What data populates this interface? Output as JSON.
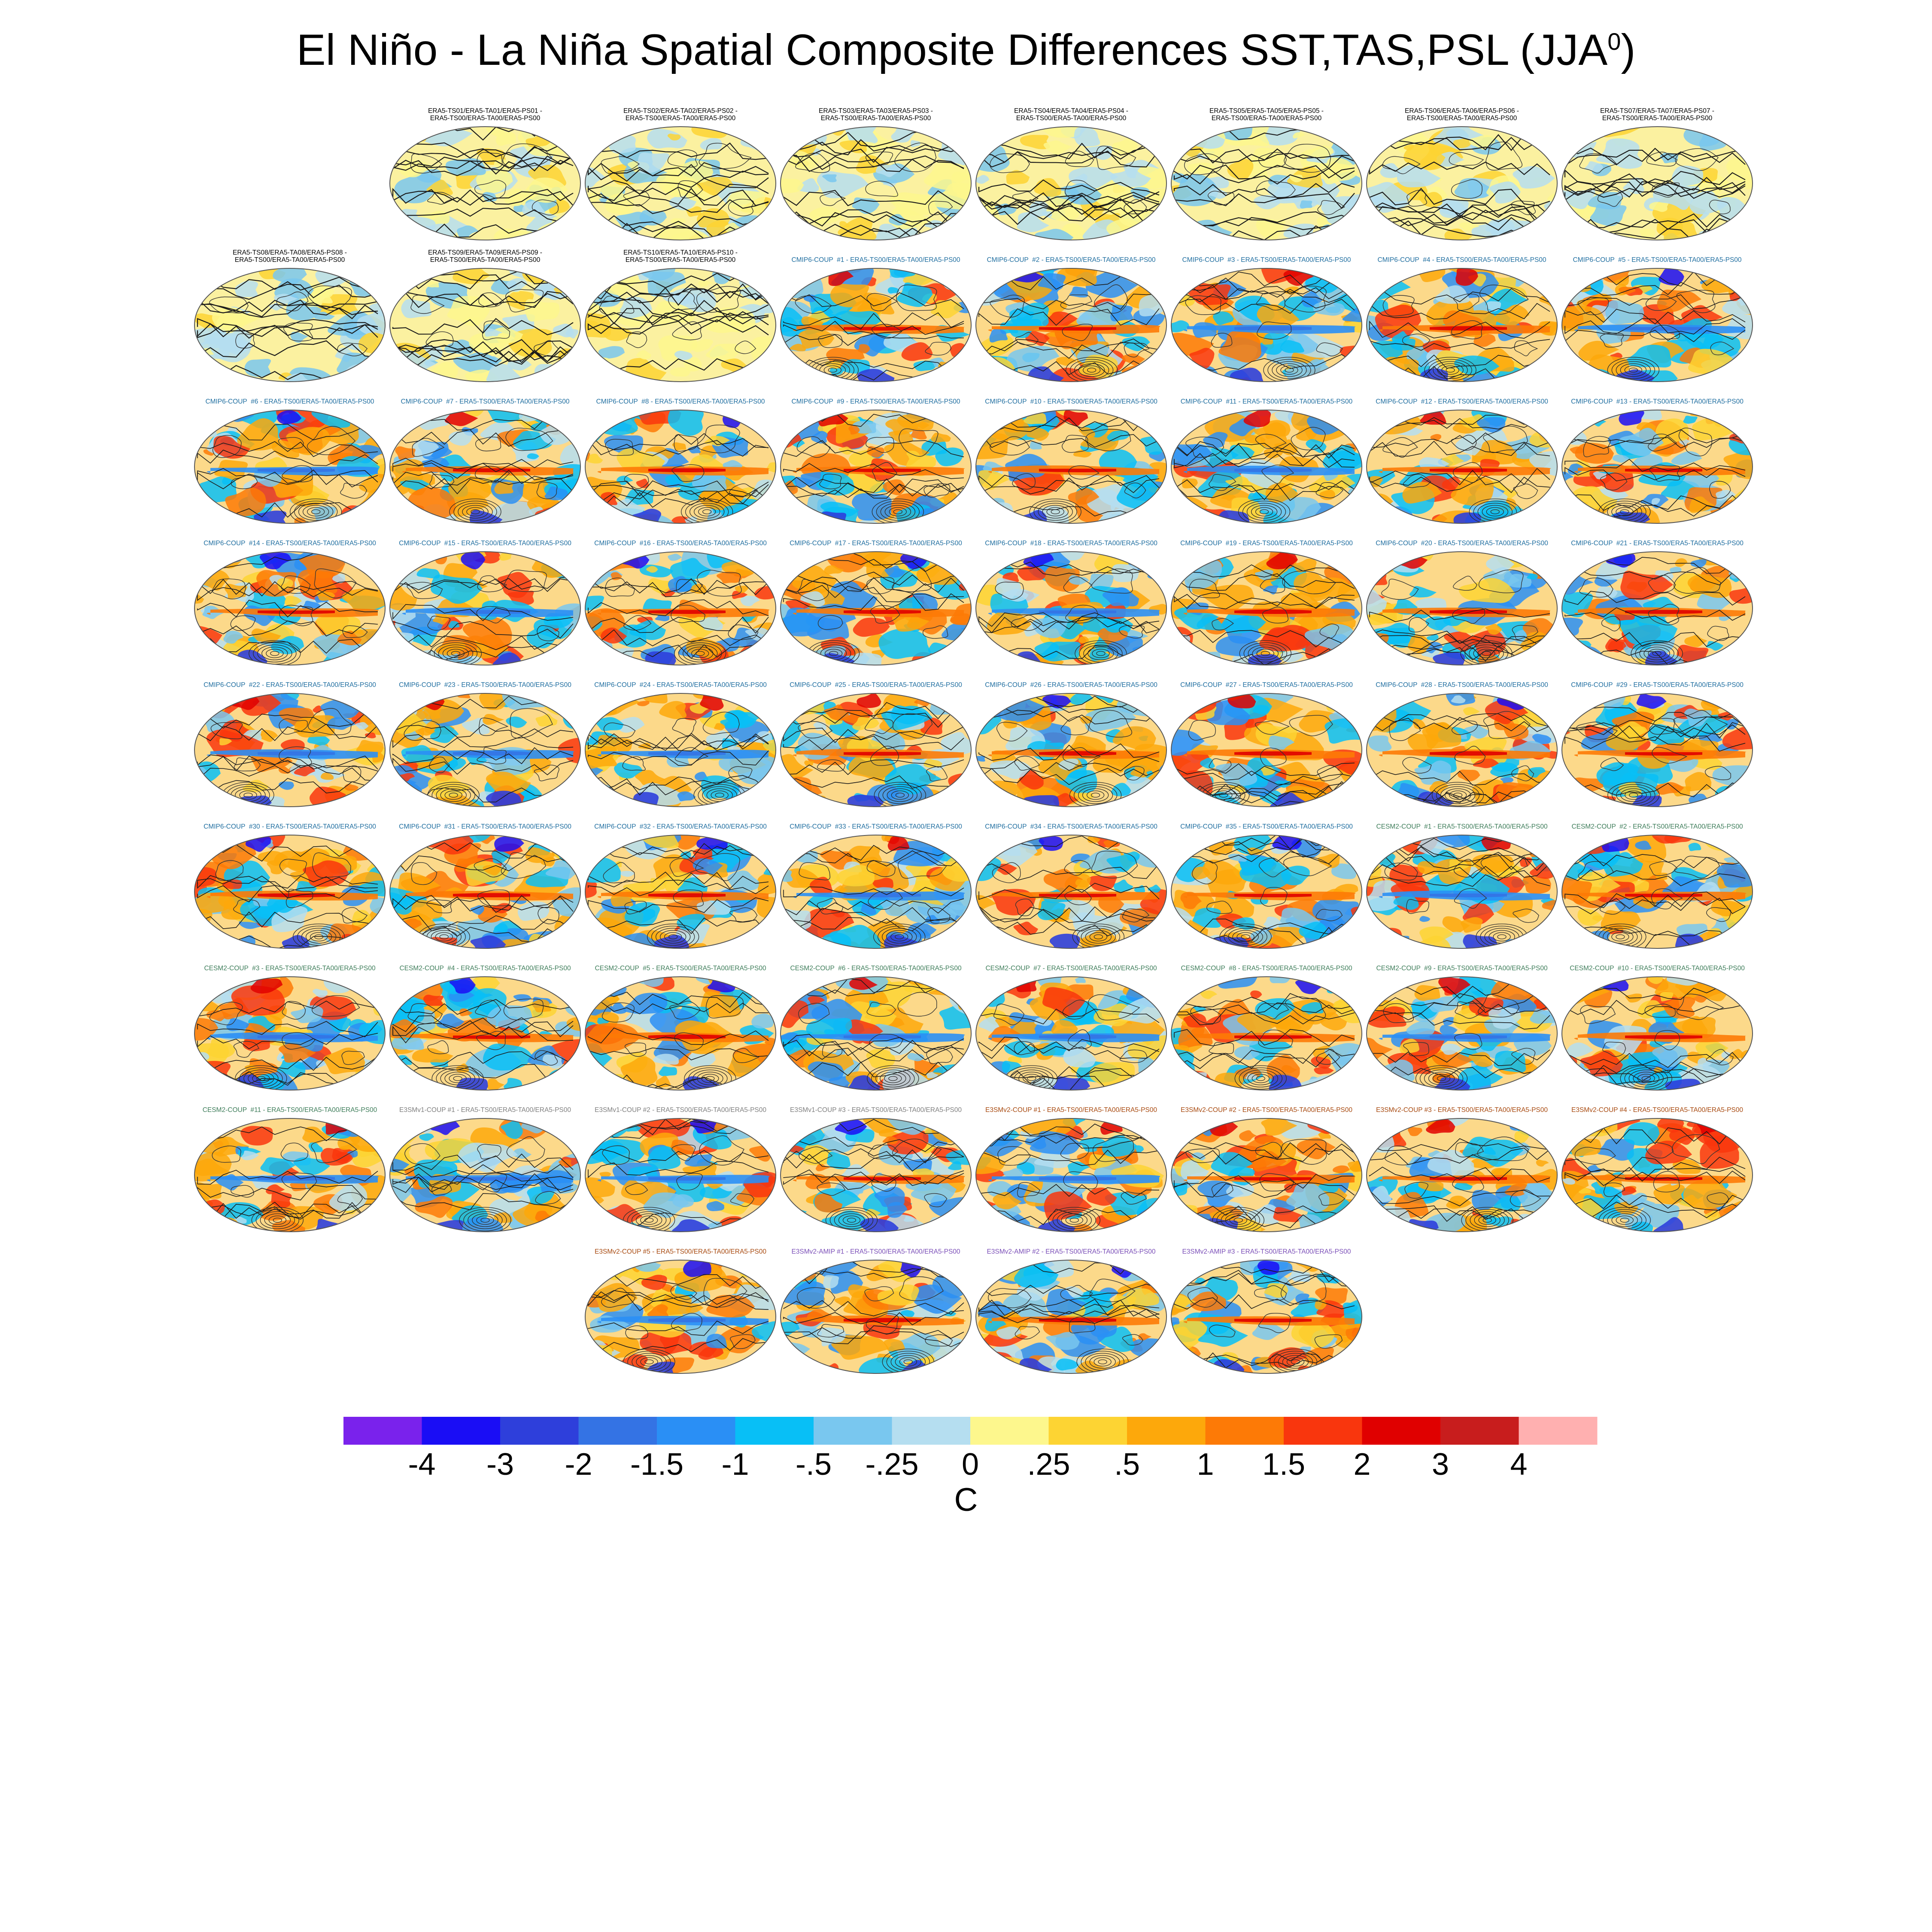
{
  "title": {
    "main": "El Niño - La Niña Spatial Composite Differences SST,TAS,PSL (JJA",
    "superscript": "0",
    "close": ")"
  },
  "label_colors": {
    "ERA5": "#000000",
    "CMIP6-COUP": "#1f6ea0",
    "CESM2-COUP": "#3e7d5a",
    "E3SMv1-COUP": "#808080",
    "E3SMv2-COUP": "#a84a10",
    "E3SMv2-AMIP": "#7b4fb8"
  },
  "rows": [
    [
      {
        "label": "ERA5-TS01/ERA5-TA01/ERA5-PS01 -\nERA5-TS00/ERA5-TA00/ERA5-PS00",
        "group": "ERA5"
      },
      {
        "label": "ERA5-TS02/ERA5-TA02/ERA5-PS02 -\nERA5-TS00/ERA5-TA00/ERA5-PS00",
        "group": "ERA5"
      },
      {
        "label": "ERA5-TS03/ERA5-TA03/ERA5-PS03 -\nERA5-TS00/ERA5-TA00/ERA5-PS00",
        "group": "ERA5"
      },
      {
        "label": "ERA5-TS04/ERA5-TA04/ERA5-PS04 -\nERA5-TS00/ERA5-TA00/ERA5-PS00",
        "group": "ERA5"
      },
      {
        "label": "ERA5-TS05/ERA5-TA05/ERA5-PS05 -\nERA5-TS00/ERA5-TA00/ERA5-PS00",
        "group": "ERA5"
      },
      {
        "label": "ERA5-TS06/ERA5-TA06/ERA5-PS06 -\nERA5-TS00/ERA5-TA00/ERA5-PS00",
        "group": "ERA5"
      },
      {
        "label": "ERA5-TS07/ERA5-TA07/ERA5-PS07 -\nERA5-TS00/ERA5-TA00/ERA5-PS00",
        "group": "ERA5"
      }
    ],
    [
      {
        "label": "ERA5-TS08/ERA5-TA08/ERA5-PS08 -\nERA5-TS00/ERA5-TA00/ERA5-PS00",
        "group": "ERA5"
      },
      {
        "label": "ERA5-TS09/ERA5-TA09/ERA5-PS09 -\nERA5-TS00/ERA5-TA00/ERA5-PS00",
        "group": "ERA5"
      },
      {
        "label": "ERA5-TS10/ERA5-TA10/ERA5-PS10 -\nERA5-TS00/ERA5-TA00/ERA5-PS00",
        "group": "ERA5"
      },
      {
        "label": "CMIP6-COUP  #1 - ERA5-TS00/ERA5-TA00/ERA5-PS00",
        "group": "CMIP6-COUP"
      },
      {
        "label": "CMIP6-COUP  #2 - ERA5-TS00/ERA5-TA00/ERA5-PS00",
        "group": "CMIP6-COUP"
      },
      {
        "label": "CMIP6-COUP  #3 - ERA5-TS00/ERA5-TA00/ERA5-PS00",
        "group": "CMIP6-COUP"
      },
      {
        "label": "CMIP6-COUP  #4 - ERA5-TS00/ERA5-TA00/ERA5-PS00",
        "group": "CMIP6-COUP"
      },
      {
        "label": "CMIP6-COUP  #5 - ERA5-TS00/ERA5-TA00/ERA5-PS00",
        "group": "CMIP6-COUP"
      }
    ],
    [
      {
        "label": "CMIP6-COUP  #6 - ERA5-TS00/ERA5-TA00/ERA5-PS00",
        "group": "CMIP6-COUP"
      },
      {
        "label": "CMIP6-COUP  #7 - ERA5-TS00/ERA5-TA00/ERA5-PS00",
        "group": "CMIP6-COUP"
      },
      {
        "label": "CMIP6-COUP  #8 - ERA5-TS00/ERA5-TA00/ERA5-PS00",
        "group": "CMIP6-COUP"
      },
      {
        "label": "CMIP6-COUP  #9 - ERA5-TS00/ERA5-TA00/ERA5-PS00",
        "group": "CMIP6-COUP"
      },
      {
        "label": "CMIP6-COUP  #10 - ERA5-TS00/ERA5-TA00/ERA5-PS00",
        "group": "CMIP6-COUP"
      },
      {
        "label": "CMIP6-COUP  #11 - ERA5-TS00/ERA5-TA00/ERA5-PS00",
        "group": "CMIP6-COUP"
      },
      {
        "label": "CMIP6-COUP  #12 - ERA5-TS00/ERA5-TA00/ERA5-PS00",
        "group": "CMIP6-COUP"
      },
      {
        "label": "CMIP6-COUP  #13 - ERA5-TS00/ERA5-TA00/ERA5-PS00",
        "group": "CMIP6-COUP"
      }
    ],
    [
      {
        "label": "CMIP6-COUP  #14 - ERA5-TS00/ERA5-TA00/ERA5-PS00",
        "group": "CMIP6-COUP"
      },
      {
        "label": "CMIP6-COUP  #15 - ERA5-TS00/ERA5-TA00/ERA5-PS00",
        "group": "CMIP6-COUP"
      },
      {
        "label": "CMIP6-COUP  #16 - ERA5-TS00/ERA5-TA00/ERA5-PS00",
        "group": "CMIP6-COUP"
      },
      {
        "label": "CMIP6-COUP  #17 - ERA5-TS00/ERA5-TA00/ERA5-PS00",
        "group": "CMIP6-COUP"
      },
      {
        "label": "CMIP6-COUP  #18 - ERA5-TS00/ERA5-TA00/ERA5-PS00",
        "group": "CMIP6-COUP"
      },
      {
        "label": "CMIP6-COUP  #19 - ERA5-TS00/ERA5-TA00/ERA5-PS00",
        "group": "CMIP6-COUP"
      },
      {
        "label": "CMIP6-COUP  #20 - ERA5-TS00/ERA5-TA00/ERA5-PS00",
        "group": "CMIP6-COUP"
      },
      {
        "label": "CMIP6-COUP  #21 - ERA5-TS00/ERA5-TA00/ERA5-PS00",
        "group": "CMIP6-COUP"
      }
    ],
    [
      {
        "label": "CMIP6-COUP  #22 - ERA5-TS00/ERA5-TA00/ERA5-PS00",
        "group": "CMIP6-COUP"
      },
      {
        "label": "CMIP6-COUP  #23 - ERA5-TS00/ERA5-TA00/ERA5-PS00",
        "group": "CMIP6-COUP"
      },
      {
        "label": "CMIP6-COUP  #24 - ERA5-TS00/ERA5-TA00/ERA5-PS00",
        "group": "CMIP6-COUP"
      },
      {
        "label": "CMIP6-COUP  #25 - ERA5-TS00/ERA5-TA00/ERA5-PS00",
        "group": "CMIP6-COUP"
      },
      {
        "label": "CMIP6-COUP  #26 - ERA5-TS00/ERA5-TA00/ERA5-PS00",
        "group": "CMIP6-COUP"
      },
      {
        "label": "CMIP6-COUP  #27 - ERA5-TS00/ERA5-TA00/ERA5-PS00",
        "group": "CMIP6-COUP"
      },
      {
        "label": "CMIP6-COUP  #28 - ERA5-TS00/ERA5-TA00/ERA5-PS00",
        "group": "CMIP6-COUP"
      },
      {
        "label": "CMIP6-COUP  #29 - ERA5-TS00/ERA5-TA00/ERA5-PS00",
        "group": "CMIP6-COUP"
      }
    ],
    [
      {
        "label": "CMIP6-COUP  #30 - ERA5-TS00/ERA5-TA00/ERA5-PS00",
        "group": "CMIP6-COUP"
      },
      {
        "label": "CMIP6-COUP  #31 - ERA5-TS00/ERA5-TA00/ERA5-PS00",
        "group": "CMIP6-COUP"
      },
      {
        "label": "CMIP6-COUP  #32 - ERA5-TS00/ERA5-TA00/ERA5-PS00",
        "group": "CMIP6-COUP"
      },
      {
        "label": "CMIP6-COUP  #33 - ERA5-TS00/ERA5-TA00/ERA5-PS00",
        "group": "CMIP6-COUP"
      },
      {
        "label": "CMIP6-COUP  #34 - ERA5-TS00/ERA5-TA00/ERA5-PS00",
        "group": "CMIP6-COUP"
      },
      {
        "label": "CMIP6-COUP  #35 - ERA5-TS00/ERA5-TA00/ERA5-PS00",
        "group": "CMIP6-COUP"
      },
      {
        "label": "CESM2-COUP  #1 - ERA5-TS00/ERA5-TA00/ERA5-PS00",
        "group": "CESM2-COUP"
      },
      {
        "label": "CESM2-COUP  #2 - ERA5-TS00/ERA5-TA00/ERA5-PS00",
        "group": "CESM2-COUP"
      }
    ],
    [
      {
        "label": "CESM2-COUP  #3 - ERA5-TS00/ERA5-TA00/ERA5-PS00",
        "group": "CESM2-COUP"
      },
      {
        "label": "CESM2-COUP  #4 - ERA5-TS00/ERA5-TA00/ERA5-PS00",
        "group": "CESM2-COUP"
      },
      {
        "label": "CESM2-COUP  #5 - ERA5-TS00/ERA5-TA00/ERA5-PS00",
        "group": "CESM2-COUP"
      },
      {
        "label": "CESM2-COUP  #6 - ERA5-TS00/ERA5-TA00/ERA5-PS00",
        "group": "CESM2-COUP"
      },
      {
        "label": "CESM2-COUP  #7 - ERA5-TS00/ERA5-TA00/ERA5-PS00",
        "group": "CESM2-COUP"
      },
      {
        "label": "CESM2-COUP  #8 - ERA5-TS00/ERA5-TA00/ERA5-PS00",
        "group": "CESM2-COUP"
      },
      {
        "label": "CESM2-COUP  #9 - ERA5-TS00/ERA5-TA00/ERA5-PS00",
        "group": "CESM2-COUP"
      },
      {
        "label": "CESM2-COUP  #10 - ERA5-TS00/ERA5-TA00/ERA5-PS00",
        "group": "CESM2-COUP"
      }
    ],
    [
      {
        "label": "CESM2-COUP  #11 - ERA5-TS00/ERA5-TA00/ERA5-PS00",
        "group": "CESM2-COUP"
      },
      {
        "label": "E3SMv1-COUP #1 - ERA5-TS00/ERA5-TA00/ERA5-PS00",
        "group": "E3SMv1-COUP"
      },
      {
        "label": "E3SMv1-COUP #2 - ERA5-TS00/ERA5-TA00/ERA5-PS00",
        "group": "E3SMv1-COUP"
      },
      {
        "label": "E3SMv1-COUP #3 - ERA5-TS00/ERA5-TA00/ERA5-PS00",
        "group": "E3SMv1-COUP"
      },
      {
        "label": "E3SMv2-COUP #1 - ERA5-TS00/ERA5-TA00/ERA5-PS00",
        "group": "E3SMv2-COUP"
      },
      {
        "label": "E3SMv2-COUP #2 - ERA5-TS00/ERA5-TA00/ERA5-PS00",
        "group": "E3SMv2-COUP"
      },
      {
        "label": "E3SMv2-COUP #3 - ERA5-TS00/ERA5-TA00/ERA5-PS00",
        "group": "E3SMv2-COUP"
      },
      {
        "label": "E3SMv2-COUP #4 - ERA5-TS00/ERA5-TA00/ERA5-PS00",
        "group": "E3SMv2-COUP"
      }
    ],
    [
      {
        "label": "E3SMv2-COUP #5 - ERA5-TS00/ERA5-TA00/ERA5-PS00",
        "group": "E3SMv2-COUP"
      },
      {
        "label": "E3SMv2-AMIP #1 - ERA5-TS00/ERA5-TA00/ERA5-PS00",
        "group": "E3SMv2-AMIP"
      },
      {
        "label": "E3SMv2-AMIP #2 - ERA5-TS00/ERA5-TA00/ERA5-PS00",
        "group": "E3SMv2-AMIP"
      },
      {
        "label": "E3SMv2-AMIP #3 - ERA5-TS00/ERA5-TA00/ERA5-PS00",
        "group": "E3SMv2-AMIP"
      }
    ]
  ],
  "colorbar": {
    "colors": [
      "#7a22ec",
      "#1a0df5",
      "#2e3fdb",
      "#3473e4",
      "#2a8ff5",
      "#08bff6",
      "#79c7ef",
      "#b5def0",
      "#fdf78d",
      "#fdd433",
      "#fda80b",
      "#fd7a06",
      "#f9360d",
      "#e00000",
      "#c81d1d",
      "#ffb0b0"
    ],
    "tick_labels": [
      "-4",
      "-3",
      "-2",
      "-1.5",
      "-1",
      "-.5",
      "-.25",
      "0",
      ".25",
      ".5",
      "1",
      "1.5",
      "2",
      "3",
      "4"
    ],
    "units": "C"
  }
}
